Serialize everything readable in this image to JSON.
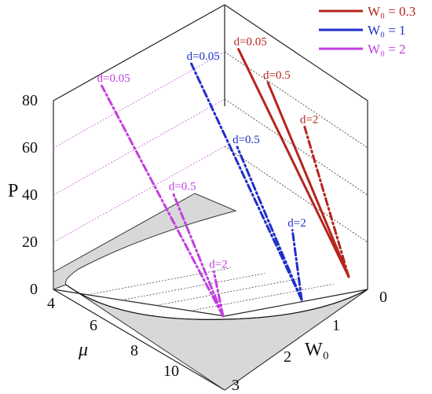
{
  "chart_data": {
    "type": "line",
    "title": "",
    "axes": {
      "z": {
        "label": "P",
        "range": [
          0,
          80
        ],
        "ticks": [
          "0",
          "20",
          "40",
          "60",
          "80"
        ]
      },
      "mu": {
        "label": "μ",
        "range": [
          3.5,
          11
        ],
        "ticks": [
          "4",
          "6",
          "8",
          "10"
        ]
      },
      "w0": {
        "label": "W₀",
        "range": [
          0,
          3
        ],
        "ticks": [
          "0",
          "1",
          "2",
          "3"
        ]
      }
    },
    "grid": true,
    "legend_position": "top-right",
    "series": [
      {
        "name": "W₀ = 0.3",
        "color": "#b5251d",
        "style": "solid"
      },
      {
        "name": "W₀ = 1",
        "color": "#1f2fc8",
        "style": "solid"
      },
      {
        "name": "W₀ = 2",
        "color": "#c23fe0",
        "style": "solid"
      }
    ],
    "curves": [
      {
        "series": 0,
        "d_label": "d=0.05",
        "style": "solid",
        "points": [
          {
            "mu": 10.2,
            "w0": 0.3,
            "p": 0
          },
          {
            "mu": 4.2,
            "w0": 0.3,
            "p": 82
          }
        ]
      },
      {
        "series": 0,
        "d_label": "d=0.5",
        "style": "solid",
        "points": [
          {
            "mu": 10.2,
            "w0": 0.3,
            "p": 0
          },
          {
            "mu": 5.8,
            "w0": 0.3,
            "p": 70
          }
        ]
      },
      {
        "series": 0,
        "d_label": "d=2",
        "style": "dashdot",
        "points": [
          {
            "mu": 10.2,
            "w0": 0.3,
            "p": 0
          },
          {
            "mu": 7.8,
            "w0": 0.3,
            "p": 54
          }
        ]
      },
      {
        "series": 1,
        "d_label": "d=0.05",
        "style": "dashdot",
        "points": [
          {
            "mu": 9.5,
            "w0": 1,
            "p": 0
          },
          {
            "mu": 3.5,
            "w0": 1,
            "p": 85
          }
        ]
      },
      {
        "series": 1,
        "d_label": "d=0.5",
        "style": "dashdot",
        "points": [
          {
            "mu": 9.5,
            "w0": 1,
            "p": 0
          },
          {
            "mu": 6.0,
            "w0": 1,
            "p": 55
          }
        ]
      },
      {
        "series": 1,
        "d_label": "d=2",
        "style": "dashdot",
        "points": [
          {
            "mu": 9.5,
            "w0": 1,
            "p": 0
          },
          {
            "mu": 9.0,
            "w0": 1,
            "p": 25
          }
        ]
      },
      {
        "series": 2,
        "d_label": "d=0.05",
        "style": "dashdot",
        "points": [
          {
            "mu": 10.2,
            "w0": 2,
            "p": 0
          },
          {
            "mu": 3.6,
            "w0": 2,
            "p": 83
          }
        ]
      },
      {
        "series": 2,
        "d_label": "d=0.5",
        "style": "dashdot",
        "points": [
          {
            "mu": 10.2,
            "w0": 2,
            "p": 0
          },
          {
            "mu": 7.5,
            "w0": 2,
            "p": 44
          }
        ]
      },
      {
        "series": 2,
        "d_label": "d=2",
        "style": "dashdot",
        "points": [
          {
            "mu": 10.2,
            "w0": 2,
            "p": 0
          },
          {
            "mu": 9.7,
            "w0": 2,
            "p": 16
          }
        ]
      }
    ]
  }
}
